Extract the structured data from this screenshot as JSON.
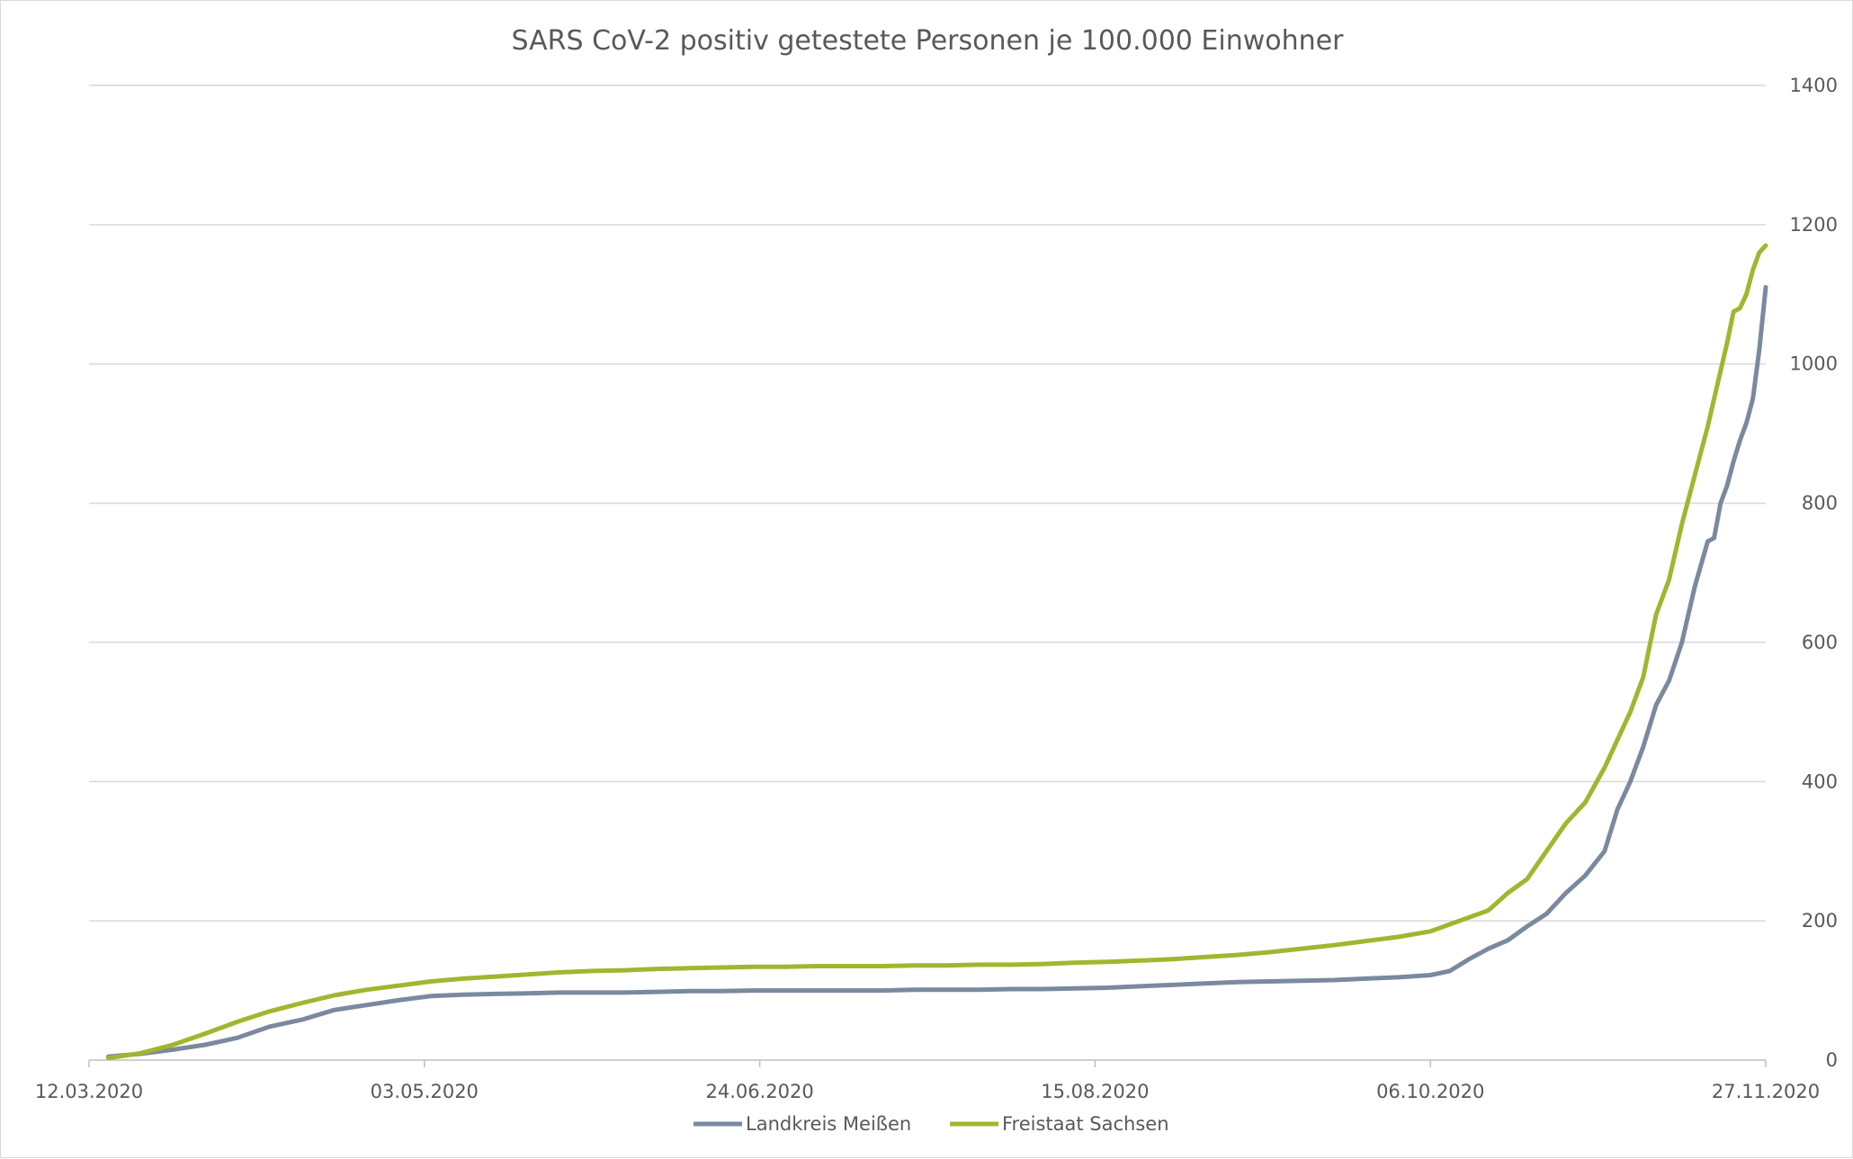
{
  "chart_data": {
    "type": "line",
    "title": "SARS CoV-2 positiv getestete Personen je 100.000 Einwohner",
    "xlabel": "",
    "ylabel": "",
    "x_axis": {
      "start_date": "12.03.2020",
      "end_date": "27.11.2020",
      "tick_labels": [
        "12.03.2020",
        "03.05.2020",
        "24.06.2020",
        "15.08.2020",
        "06.10.2020",
        "27.11.2020"
      ]
    },
    "y_axis": {
      "position": "right",
      "ylim": [
        0,
        1400
      ],
      "ticks": [
        0,
        200,
        400,
        600,
        800,
        1000,
        1200,
        1400
      ]
    },
    "grid": true,
    "legend_position": "bottom-center",
    "series": [
      {
        "name": "Landkreis Meißen",
        "color": "#7a8a9e",
        "points": [
          [
            "15.03.2020",
            5
          ],
          [
            "20.03.2020",
            9
          ],
          [
            "25.03.2020",
            15
          ],
          [
            "30.03.2020",
            22
          ],
          [
            "04.04.2020",
            32
          ],
          [
            "09.04.2020",
            48
          ],
          [
            "14.04.2020",
            58
          ],
          [
            "19.04.2020",
            72
          ],
          [
            "24.04.2020",
            79
          ],
          [
            "29.04.2020",
            86
          ],
          [
            "04.05.2020",
            92
          ],
          [
            "09.05.2020",
            94
          ],
          [
            "14.05.2020",
            95
          ],
          [
            "19.05.2020",
            96
          ],
          [
            "24.05.2020",
            97
          ],
          [
            "29.05.2020",
            97
          ],
          [
            "03.06.2020",
            97
          ],
          [
            "08.06.2020",
            98
          ],
          [
            "13.06.2020",
            99
          ],
          [
            "18.06.2020",
            99
          ],
          [
            "23.06.2020",
            100
          ],
          [
            "28.06.2020",
            100
          ],
          [
            "03.07.2020",
            100
          ],
          [
            "08.07.2020",
            100
          ],
          [
            "13.07.2020",
            100
          ],
          [
            "18.07.2020",
            101
          ],
          [
            "23.07.2020",
            101
          ],
          [
            "28.07.2020",
            101
          ],
          [
            "02.08.2020",
            102
          ],
          [
            "07.08.2020",
            102
          ],
          [
            "12.08.2020",
            103
          ],
          [
            "17.08.2020",
            104
          ],
          [
            "22.08.2020",
            106
          ],
          [
            "27.08.2020",
            108
          ],
          [
            "01.09.2020",
            110
          ],
          [
            "06.09.2020",
            112
          ],
          [
            "11.09.2020",
            113
          ],
          [
            "16.09.2020",
            114
          ],
          [
            "21.09.2020",
            115
          ],
          [
            "26.09.2020",
            117
          ],
          [
            "01.10.2020",
            119
          ],
          [
            "06.10.2020",
            122
          ],
          [
            "09.10.2020",
            128
          ],
          [
            "12.10.2020",
            145
          ],
          [
            "15.10.2020",
            160
          ],
          [
            "18.10.2020",
            172
          ],
          [
            "21.10.2020",
            192
          ],
          [
            "24.10.2020",
            210
          ],
          [
            "27.10.2020",
            240
          ],
          [
            "30.10.2020",
            265
          ],
          [
            "02.11.2020",
            300
          ],
          [
            "04.11.2020",
            360
          ],
          [
            "06.11.2020",
            400
          ],
          [
            "08.11.2020",
            450
          ],
          [
            "10.11.2020",
            510
          ],
          [
            "12.11.2020",
            545
          ],
          [
            "14.11.2020",
            600
          ],
          [
            "16.11.2020",
            680
          ],
          [
            "18.11.2020",
            745
          ],
          [
            "19.11.2020",
            750
          ],
          [
            "20.11.2020",
            800
          ],
          [
            "21.11.2020",
            825
          ],
          [
            "22.11.2020",
            860
          ],
          [
            "23.11.2020",
            890
          ],
          [
            "24.11.2020",
            915
          ],
          [
            "25.11.2020",
            950
          ],
          [
            "26.11.2020",
            1020
          ],
          [
            "27.11.2020",
            1110
          ]
        ]
      },
      {
        "name": "Freistaat Sachsen",
        "color": "#a3b52f",
        "points": [
          [
            "15.03.2020",
            3
          ],
          [
            "20.03.2020",
            10
          ],
          [
            "25.03.2020",
            22
          ],
          [
            "30.03.2020",
            38
          ],
          [
            "04.04.2020",
            55
          ],
          [
            "09.04.2020",
            70
          ],
          [
            "14.04.2020",
            82
          ],
          [
            "19.04.2020",
            93
          ],
          [
            "24.04.2020",
            101
          ],
          [
            "29.04.2020",
            107
          ],
          [
            "04.05.2020",
            113
          ],
          [
            "09.05.2020",
            117
          ],
          [
            "14.05.2020",
            120
          ],
          [
            "19.05.2020",
            123
          ],
          [
            "24.05.2020",
            126
          ],
          [
            "29.05.2020",
            128
          ],
          [
            "03.06.2020",
            129
          ],
          [
            "08.06.2020",
            131
          ],
          [
            "13.06.2020",
            132
          ],
          [
            "18.06.2020",
            133
          ],
          [
            "23.06.2020",
            134
          ],
          [
            "28.06.2020",
            134
          ],
          [
            "03.07.2020",
            135
          ],
          [
            "08.07.2020",
            135
          ],
          [
            "13.07.2020",
            135
          ],
          [
            "18.07.2020",
            136
          ],
          [
            "23.07.2020",
            136
          ],
          [
            "28.07.2020",
            137
          ],
          [
            "02.08.2020",
            137
          ],
          [
            "07.08.2020",
            138
          ],
          [
            "12.08.2020",
            140
          ],
          [
            "17.08.2020",
            141
          ],
          [
            "22.08.2020",
            143
          ],
          [
            "27.08.2020",
            145
          ],
          [
            "01.09.2020",
            148
          ],
          [
            "06.09.2020",
            151
          ],
          [
            "11.09.2020",
            155
          ],
          [
            "16.09.2020",
            160
          ],
          [
            "21.09.2020",
            165
          ],
          [
            "26.09.2020",
            171
          ],
          [
            "01.10.2020",
            177
          ],
          [
            "06.10.2020",
            185
          ],
          [
            "09.10.2020",
            195
          ],
          [
            "12.10.2020",
            205
          ],
          [
            "15.10.2020",
            215
          ],
          [
            "18.10.2020",
            240
          ],
          [
            "21.10.2020",
            260
          ],
          [
            "24.10.2020",
            300
          ],
          [
            "27.10.2020",
            340
          ],
          [
            "30.10.2020",
            370
          ],
          [
            "02.11.2020",
            420
          ],
          [
            "04.11.2020",
            460
          ],
          [
            "06.11.2020",
            500
          ],
          [
            "08.11.2020",
            550
          ],
          [
            "10.11.2020",
            640
          ],
          [
            "12.11.2020",
            690
          ],
          [
            "14.11.2020",
            770
          ],
          [
            "16.11.2020",
            840
          ],
          [
            "18.11.2020",
            910
          ],
          [
            "19.11.2020",
            950
          ],
          [
            "20.11.2020",
            990
          ],
          [
            "21.11.2020",
            1030
          ],
          [
            "22.11.2020",
            1075
          ],
          [
            "23.11.2020",
            1080
          ],
          [
            "24.11.2020",
            1100
          ],
          [
            "25.11.2020",
            1135
          ],
          [
            "26.11.2020",
            1160
          ],
          [
            "27.11.2020",
            1170
          ]
        ]
      }
    ]
  }
}
